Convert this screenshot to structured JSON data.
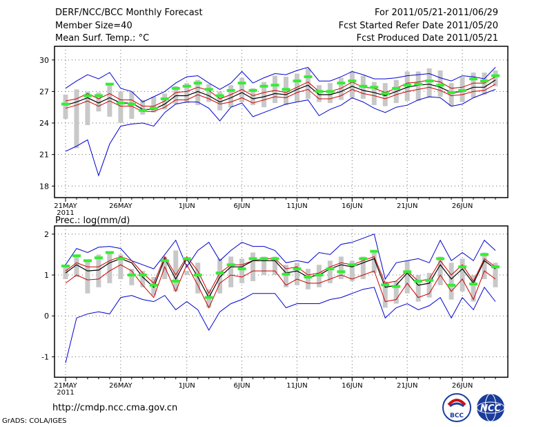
{
  "header": {
    "title": "DERF/NCC/BCC Monthly Forecast",
    "member_size": "Member Size=40",
    "variable": "Mean Surf. Temp.: °C",
    "for_range": "For 2011/05/21-2011/06/29",
    "start_date": "Fcst Started Refer Date 2011/05/20",
    "produced_date": "Fcst Produced Date 2011/05/21"
  },
  "footer": {
    "url": "http://cmdp.ncc.cma.gov.cn",
    "grads": "GrADS: COLA/IGES",
    "logo_bcc": "BCC",
    "logo_ncc": "NCC"
  },
  "colors": {
    "envelope": "#0000cc",
    "band": "#cc0000",
    "mean": "#000000",
    "box": "#c8c8c8",
    "marker": "#33ee33",
    "grid": "#666666"
  },
  "chart_data": [
    {
      "type": "line",
      "id": "temp",
      "title": "Mean Surf. Temp.: °C",
      "ylabel": "°C",
      "ylim": [
        16.9,
        31.3
      ],
      "yticks": [
        18,
        21,
        24,
        27,
        30
      ],
      "x_start": "2011-05-21",
      "xticks": [
        {
          "day": 0,
          "label": "21MAY",
          "sub": "2011"
        },
        {
          "day": 5,
          "label": "26MAY"
        },
        {
          "day": 11,
          "label": "1JUN"
        },
        {
          "day": 16,
          "label": "6JUN"
        },
        {
          "day": 21,
          "label": "11JUN"
        },
        {
          "day": 26,
          "label": "16JUN"
        },
        {
          "day": 31,
          "label": "21JUN"
        },
        {
          "day": 36,
          "label": "26JUN"
        }
      ],
      "series": [
        {
          "name": "ensemble max",
          "values": [
            27.3,
            28.0,
            28.6,
            28.2,
            28.8,
            27.3,
            27.0,
            26.0,
            26.5,
            27.0,
            27.8,
            28.4,
            28.5,
            27.8,
            27.2,
            27.8,
            28.9,
            27.8,
            28.3,
            28.7,
            28.6,
            29.0,
            29.3,
            28.0,
            28.0,
            28.4,
            28.9,
            28.6,
            28.2,
            28.2,
            28.3,
            28.5,
            28.6,
            28.7,
            28.3,
            28.0,
            28.5,
            28.4,
            28.2,
            29.3
          ]
        },
        {
          "name": "upper band",
          "values": [
            26.1,
            26.3,
            26.8,
            26.3,
            26.8,
            26.2,
            26.2,
            25.6,
            25.6,
            26.1,
            26.9,
            27.0,
            27.4,
            27.1,
            26.3,
            26.7,
            27.2,
            26.6,
            26.9,
            27.1,
            26.9,
            27.4,
            27.9,
            27.0,
            27.0,
            27.3,
            27.9,
            27.4,
            27.3,
            26.9,
            27.3,
            27.8,
            27.9,
            28.1,
            27.9,
            27.3,
            27.4,
            27.8,
            27.8,
            28.4
          ]
        },
        {
          "name": "ensemble mean",
          "values": [
            25.7,
            26.0,
            26.4,
            25.9,
            26.4,
            25.9,
            25.9,
            25.3,
            25.3,
            25.8,
            26.6,
            26.6,
            27.0,
            26.6,
            26.0,
            26.4,
            26.9,
            26.3,
            26.5,
            26.8,
            26.7,
            27.2,
            27.6,
            26.7,
            26.7,
            27.0,
            27.5,
            27.1,
            26.9,
            26.6,
            27.0,
            27.4,
            27.6,
            27.7,
            27.4,
            26.9,
            27.0,
            27.4,
            27.4,
            28.1
          ]
        },
        {
          "name": "lower band",
          "values": [
            25.4,
            25.7,
            26.1,
            25.6,
            26.1,
            25.6,
            25.6,
            25.1,
            25.1,
            25.5,
            26.2,
            26.2,
            26.7,
            26.3,
            25.8,
            26.0,
            26.4,
            25.9,
            26.2,
            26.5,
            26.4,
            26.9,
            27.2,
            26.3,
            26.3,
            26.6,
            27.2,
            26.8,
            26.6,
            26.3,
            26.7,
            27.0,
            27.2,
            27.4,
            27.1,
            26.6,
            26.7,
            27.0,
            27.1,
            27.7
          ]
        },
        {
          "name": "ensemble min",
          "values": [
            21.3,
            21.8,
            22.4,
            19.0,
            22.0,
            23.7,
            23.9,
            24.0,
            23.7,
            25.0,
            25.8,
            26.0,
            26.0,
            25.4,
            24.2,
            25.5,
            25.9,
            24.6,
            25.0,
            25.4,
            25.8,
            26.0,
            26.2,
            24.7,
            25.3,
            25.7,
            26.4,
            26.0,
            25.4,
            25.0,
            25.5,
            25.7,
            26.2,
            26.5,
            26.4,
            25.6,
            25.8,
            26.4,
            26.8,
            27.2
          ]
        }
      ],
      "boxes": {
        "low": [
          24.4,
          21.6,
          23.8,
          25.1,
          24.6,
          24.0,
          24.4,
          24.8,
          25.0,
          25.3,
          25.8,
          25.9,
          25.7,
          26.0,
          25.2,
          25.5,
          26.0,
          25.7,
          25.5,
          25.9,
          25.7,
          26.0,
          26.3,
          26.0,
          25.9,
          26.2,
          26.4,
          26.3,
          25.7,
          25.6,
          25.9,
          26.1,
          26.1,
          26.4,
          26.5,
          25.6,
          26.0,
          26.4,
          26.7,
          27.5
        ],
        "high": [
          26.7,
          27.2,
          27.0,
          26.9,
          27.6,
          27.0,
          27.0,
          26.2,
          26.5,
          26.8,
          27.5,
          27.8,
          28.1,
          27.7,
          27.0,
          27.6,
          28.3,
          27.3,
          27.9,
          28.5,
          28.4,
          28.7,
          29.2,
          27.6,
          27.8,
          28.3,
          28.9,
          28.5,
          27.9,
          27.8,
          28.1,
          28.9,
          28.9,
          29.2,
          29.0,
          27.8,
          28.4,
          28.8,
          28.8,
          29.0
        ]
      },
      "markers": [
        25.8,
        null,
        26.6,
        26.6,
        27.7,
        25.9,
        25.8,
        25.2,
        25.4,
        26.3,
        27.3,
        27.5,
        27.8,
        27.2,
        26.6,
        27.1,
        27.8,
        27.1,
        27.5,
        27.6,
        27.2,
        28.0,
        28.4,
        27.0,
        27.0,
        27.8,
        28.0,
        27.5,
        27.4,
        26.8,
        27.3,
        27.6,
        27.7,
        28.0,
        27.6,
        26.9,
        27.1,
        28.2,
        28.0,
        28.5
      ]
    },
    {
      "type": "line",
      "id": "prec",
      "title": "Prec.: log(mm/d)",
      "ylabel": "log(mm/d)",
      "ylim": [
        -1.5,
        2.2
      ],
      "yticks": [
        -1,
        0,
        1,
        2
      ],
      "x_start": "2011-05-21",
      "xticks": [
        {
          "day": 0,
          "label": "21MAY",
          "sub": "2011"
        },
        {
          "day": 5,
          "label": "26MAY"
        },
        {
          "day": 11,
          "label": "1JUN"
        },
        {
          "day": 16,
          "label": "6JUN"
        },
        {
          "day": 21,
          "label": "11JUN"
        },
        {
          "day": 26,
          "label": "16JUN"
        },
        {
          "day": 31,
          "label": "21JUN"
        },
        {
          "day": 36,
          "label": "26JUN"
        }
      ],
      "series": [
        {
          "name": "ensemble max",
          "values": [
            1.25,
            1.65,
            1.55,
            1.68,
            1.7,
            1.65,
            1.35,
            1.25,
            1.15,
            1.5,
            1.85,
            1.2,
            1.6,
            1.8,
            1.35,
            1.6,
            1.8,
            1.7,
            1.7,
            1.6,
            1.3,
            1.35,
            1.3,
            1.55,
            1.5,
            1.75,
            1.8,
            1.9,
            2.0,
            0.9,
            1.3,
            1.35,
            1.4,
            1.3,
            1.85,
            1.35,
            1.55,
            1.35,
            1.85,
            1.6
          ]
        },
        {
          "name": "upper band",
          "values": [
            1.1,
            1.3,
            1.2,
            1.2,
            1.35,
            1.45,
            1.35,
            1.05,
            0.8,
            1.45,
            1.0,
            1.45,
            1.1,
            0.55,
            1.05,
            1.25,
            1.25,
            1.35,
            1.4,
            1.4,
            1.15,
            1.2,
            1.0,
            1.05,
            1.2,
            1.3,
            1.25,
            1.35,
            1.45,
            0.8,
            0.85,
            1.1,
            0.85,
            0.9,
            1.35,
            1.0,
            1.25,
            0.85,
            1.4,
            1.2
          ]
        },
        {
          "name": "ensemble mean",
          "values": [
            1.05,
            1.25,
            1.1,
            1.12,
            1.3,
            1.4,
            1.3,
            0.95,
            0.7,
            1.4,
            0.9,
            1.4,
            0.95,
            0.45,
            0.95,
            1.2,
            1.2,
            1.35,
            1.35,
            1.35,
            1.05,
            1.1,
            0.95,
            1.0,
            1.15,
            1.25,
            1.2,
            1.3,
            1.4,
            0.7,
            0.75,
            1.05,
            0.75,
            0.8,
            1.25,
            0.9,
            1.15,
            0.8,
            1.35,
            1.15
          ]
        },
        {
          "name": "lower band",
          "values": [
            0.8,
            1.0,
            0.88,
            0.9,
            1.1,
            1.25,
            1.1,
            0.75,
            0.45,
            1.2,
            0.6,
            1.25,
            0.75,
            0.2,
            0.8,
            1.0,
            0.95,
            1.1,
            1.1,
            1.1,
            0.75,
            0.9,
            0.8,
            0.8,
            0.9,
            1.0,
            0.9,
            1.0,
            1.1,
            0.35,
            0.4,
            0.8,
            0.45,
            0.55,
            1.0,
            0.6,
            0.9,
            0.4,
            1.1,
            0.9
          ]
        },
        {
          "name": "ensemble min",
          "values": [
            -1.15,
            -0.05,
            0.05,
            0.1,
            0.05,
            0.45,
            0.5,
            0.4,
            0.35,
            0.5,
            0.15,
            0.35,
            0.15,
            -0.35,
            0.1,
            0.3,
            0.4,
            0.55,
            0.55,
            0.55,
            0.2,
            0.3,
            0.3,
            0.3,
            0.4,
            0.45,
            0.55,
            0.65,
            0.7,
            -0.05,
            0.2,
            0.3,
            0.15,
            0.25,
            0.45,
            -0.05,
            0.45,
            0.15,
            0.7,
            0.35
          ]
        }
      ],
      "boxes": {
        "low": [
          0.9,
          0.95,
          0.55,
          0.7,
          0.8,
          0.9,
          0.75,
          0.7,
          0.5,
          0.9,
          0.6,
          1.0,
          0.55,
          0.2,
          0.55,
          0.7,
          0.8,
          0.85,
          1.0,
          1.0,
          0.7,
          0.75,
          0.65,
          0.7,
          0.8,
          0.9,
          0.85,
          0.9,
          1.05,
          0.2,
          0.3,
          0.55,
          0.35,
          0.45,
          0.75,
          0.4,
          0.6,
          0.35,
          0.9,
          0.7
        ],
        "high": [
          1.25,
          1.5,
          1.35,
          1.5,
          1.55,
          1.5,
          1.15,
          1.1,
          0.95,
          1.45,
          1.6,
          1.1,
          1.3,
          0.65,
          1.4,
          1.45,
          1.4,
          1.55,
          1.45,
          1.45,
          1.25,
          1.3,
          1.15,
          1.25,
          1.35,
          1.45,
          1.35,
          1.45,
          1.6,
          0.85,
          0.85,
          1.35,
          1.0,
          1.05,
          1.45,
          1.3,
          1.4,
          1.0,
          1.55,
          1.3
        ]
      },
      "markers": [
        1.22,
        1.47,
        1.35,
        1.42,
        1.55,
        1.4,
        1.0,
        1.0,
        0.75,
        1.35,
        0.85,
        1.4,
        1.0,
        0.45,
        1.05,
        1.25,
        1.15,
        1.4,
        1.4,
        1.4,
        1.02,
        1.15,
        0.95,
        1.0,
        1.15,
        1.08,
        1.25,
        1.4,
        1.58,
        0.76,
        0.72,
        1.08,
        0.85,
        0.87,
        1.4,
        0.75,
        1.2,
        0.78,
        1.5,
        1.2
      ]
    }
  ]
}
